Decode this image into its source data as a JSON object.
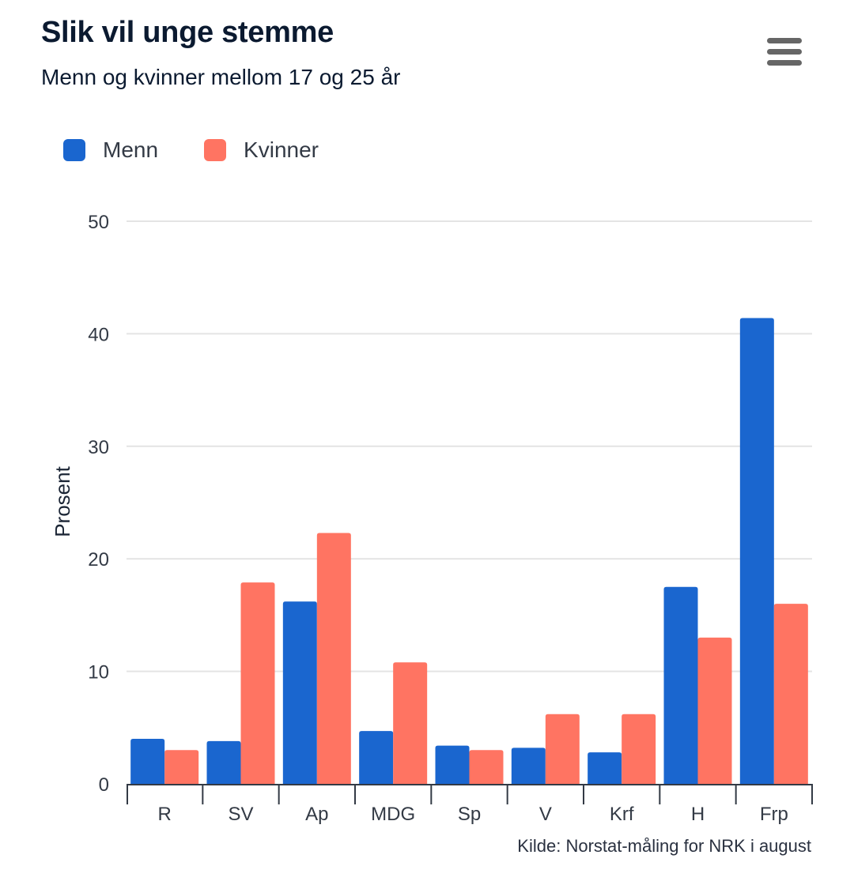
{
  "header": {
    "title": "Slik vil unge stemme",
    "subtitle": "Menn og kvinner mellom 17 og 25 år"
  },
  "menu": {
    "icon": "hamburger-menu-icon",
    "color": "#666666"
  },
  "legend": {
    "items": [
      {
        "label": "Menn",
        "color": "#1a66cf"
      },
      {
        "label": "Kvinner",
        "color": "#ff7462"
      }
    ]
  },
  "source": "Kilde: Norstat-måling for NRK i august",
  "chart_data": {
    "type": "bar",
    "title": "Slik vil unge stemme",
    "subtitle": "Menn og kvinner mellom 17 og 25 år",
    "xlabel": "",
    "ylabel": "Prosent",
    "categories": [
      "R",
      "SV",
      "Ap",
      "MDG",
      "Sp",
      "V",
      "Krf",
      "H",
      "Frp"
    ],
    "series": [
      {
        "name": "Menn",
        "color": "#1a66cf",
        "values": [
          4.0,
          3.8,
          16.2,
          4.7,
          3.4,
          3.2,
          2.8,
          17.5,
          41.4
        ]
      },
      {
        "name": "Kvinner",
        "color": "#ff7462",
        "values": [
          3.0,
          17.9,
          22.3,
          10.8,
          3.0,
          6.2,
          6.2,
          13.0,
          16.0
        ]
      }
    ],
    "ylim": [
      0,
      50
    ],
    "yticks": [
      0,
      10,
      20,
      30,
      40,
      50
    ],
    "grid": true,
    "legend_position": "top-left"
  }
}
